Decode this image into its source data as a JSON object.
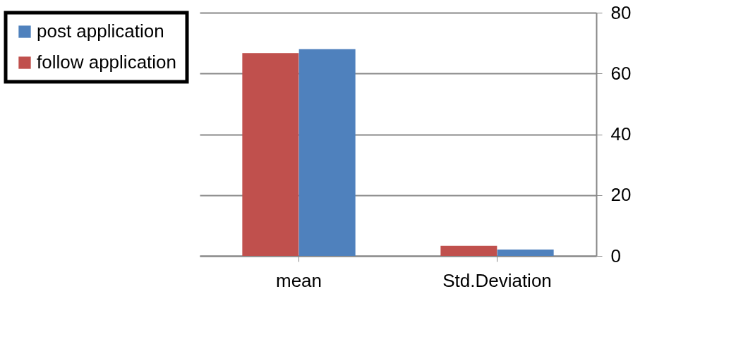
{
  "chart_data": {
    "type": "bar",
    "categories": [
      "mean",
      "Std.Deviation"
    ],
    "series": [
      {
        "name": "follow application",
        "color": "#c0504d",
        "values": [
          66.7,
          3.3
        ]
      },
      {
        "name": "post application",
        "color": "#4f81bd",
        "values": [
          68.0,
          2.1
        ]
      }
    ],
    "ylim": [
      0,
      80
    ],
    "yticks": [
      0,
      20,
      40,
      60,
      80
    ],
    "grid": "y",
    "legend": "left"
  }
}
